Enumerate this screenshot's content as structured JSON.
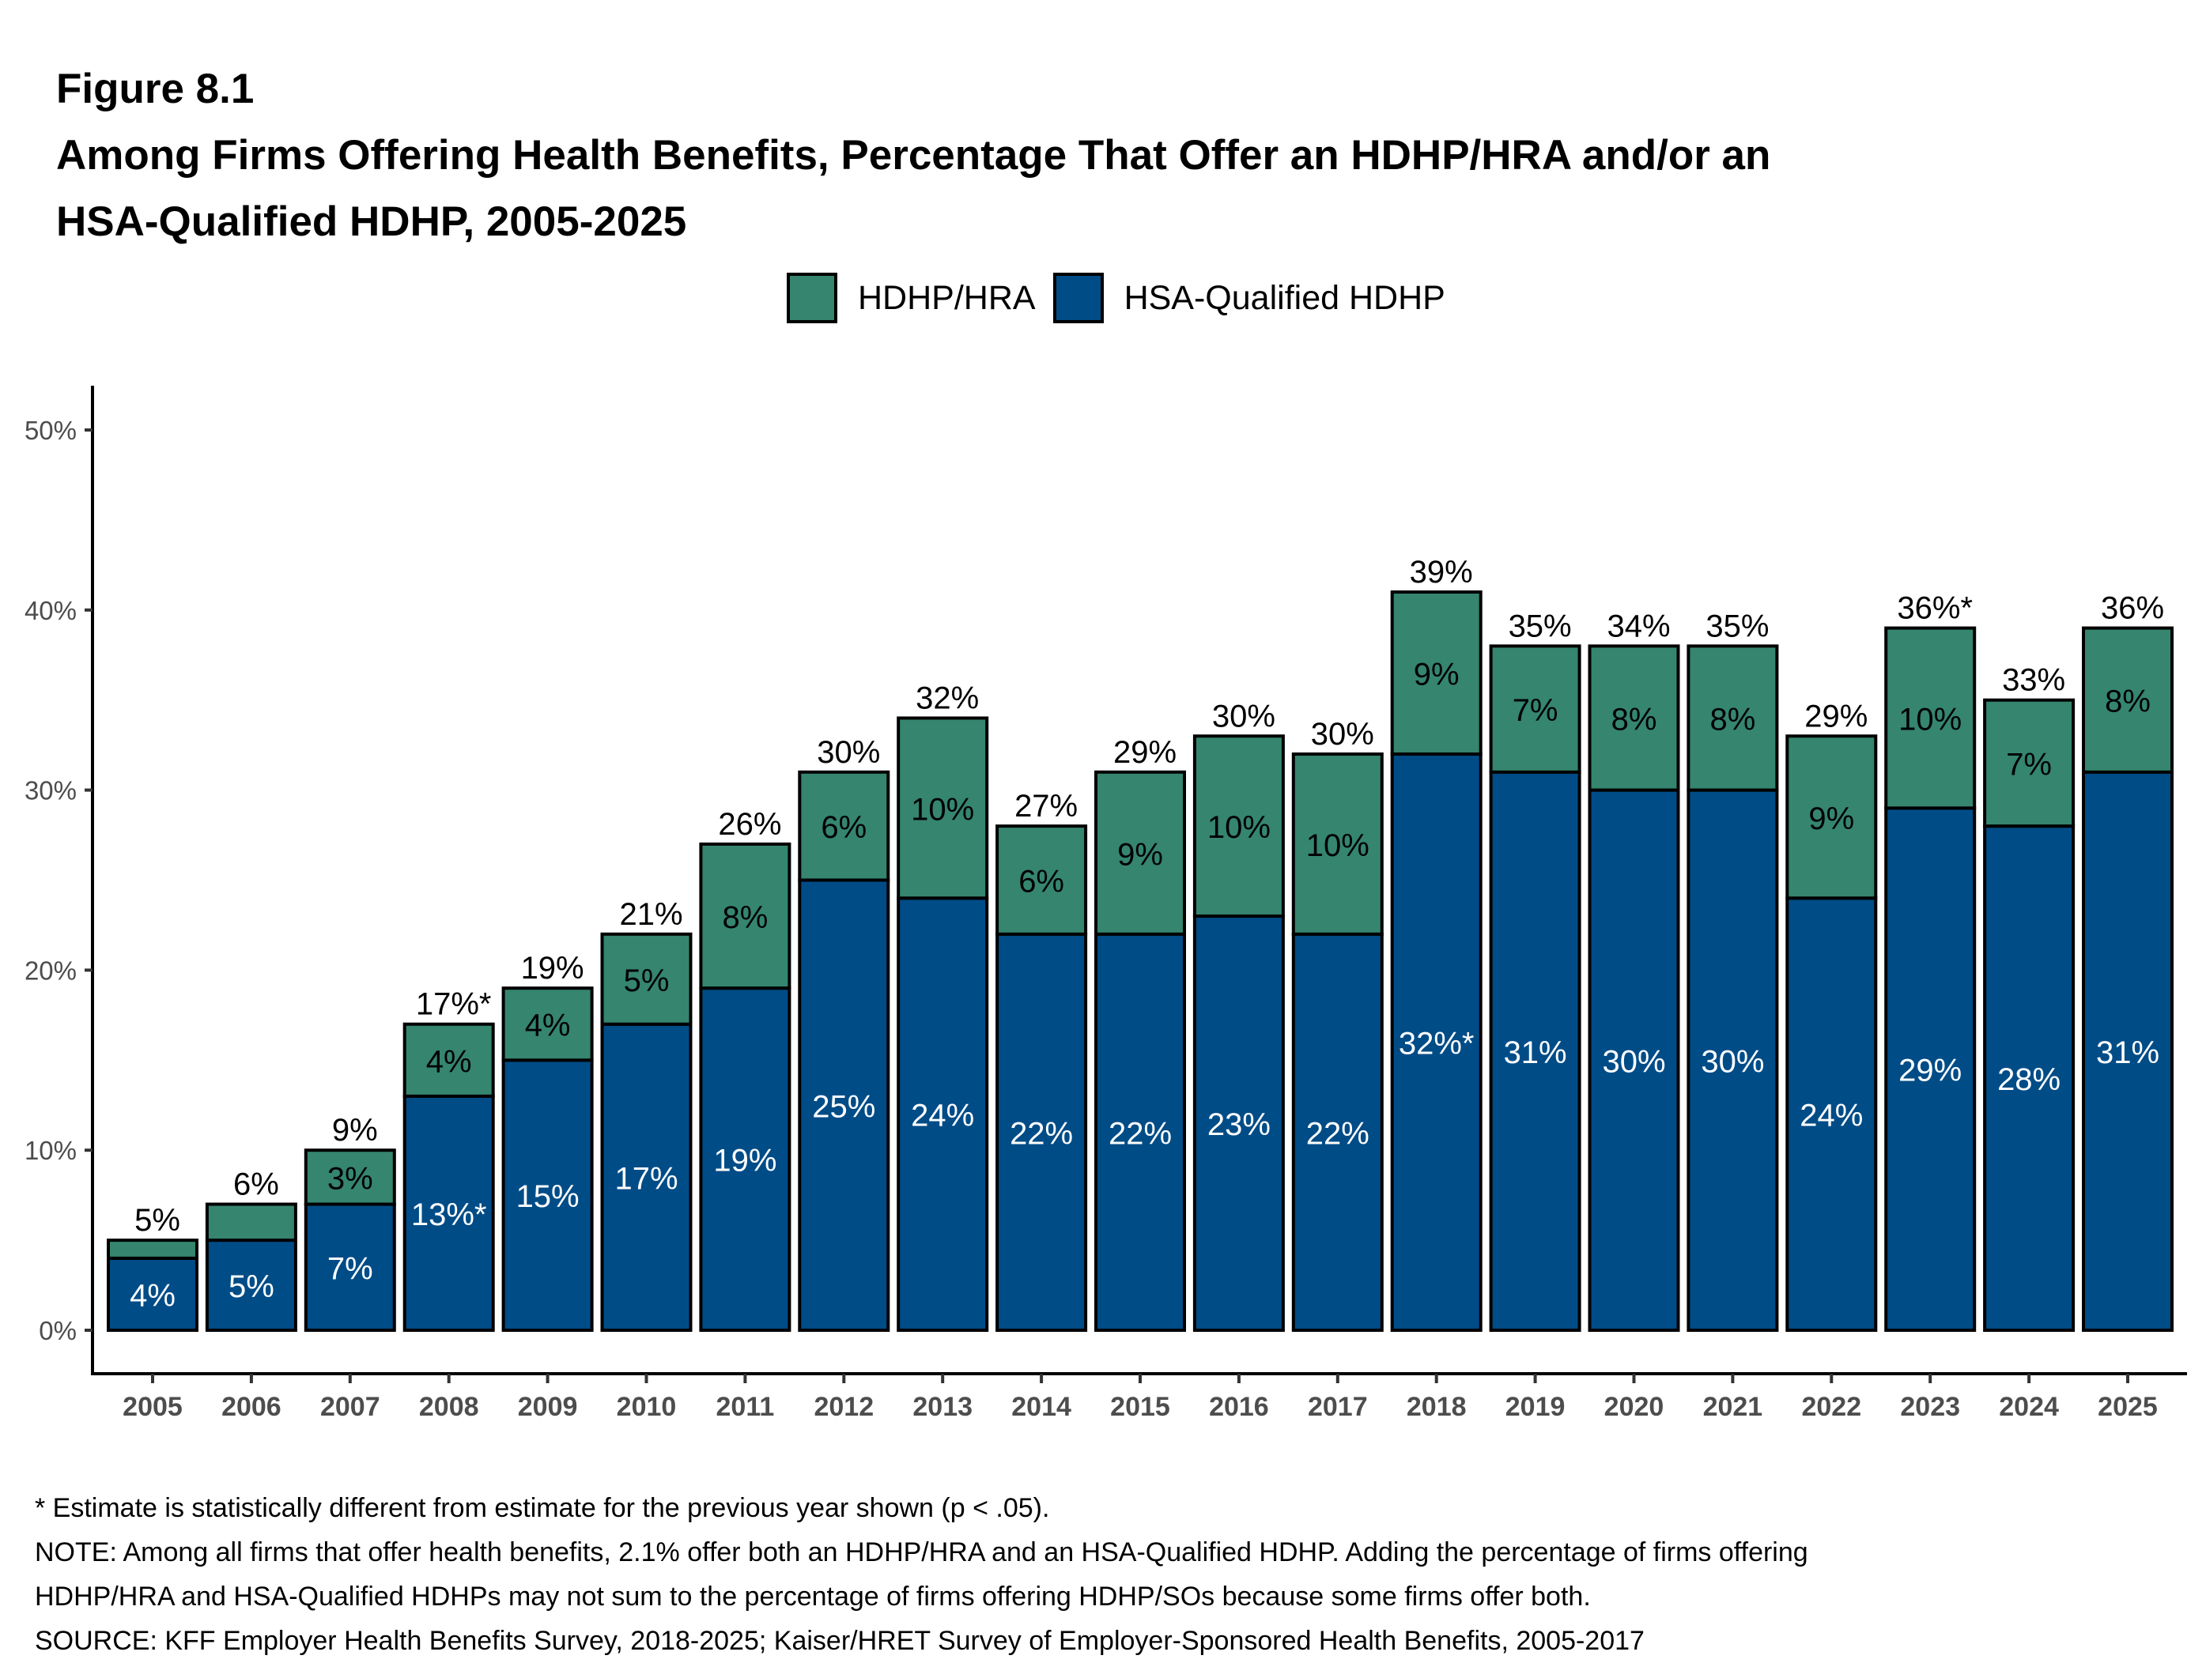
{
  "figure": {
    "label": "Figure 8.1",
    "title_lines": [
      "Among Firms Offering Health Benefits, Percentage That Offer an HDHP/HRA and/or an",
      "HSA-Qualified HDHP, 2005-2025"
    ]
  },
  "colors": {
    "hdhp_hra": "#35856F",
    "hsa_qualified_hdhp": "#004C87",
    "axis_text": "#4D4D4D",
    "bar_outline": "#000000"
  },
  "legend": {
    "items": [
      {
        "label": "HDHP/HRA",
        "color": "#35856F"
      },
      {
        "label": "HSA-Qualified HDHP",
        "color": "#004C87"
      }
    ]
  },
  "chart_data": {
    "type": "bar",
    "stacked": true,
    "title": "Among Firms Offering Health Benefits, Percentage That Offer an HDHP/HRA and/or an HSA-Qualified HDHP, 2005-2025",
    "xlabel": "",
    "ylabel": "",
    "ylim": [
      0,
      50
    ],
    "yticks": [
      0,
      10,
      20,
      30,
      40,
      50
    ],
    "ytick_labels": [
      "0%",
      "10%",
      "20%",
      "30%",
      "40%",
      "50%"
    ],
    "grid": false,
    "legend_position": "top",
    "categories": [
      "2005",
      "2006",
      "2007",
      "2008",
      "2009",
      "2010",
      "2011",
      "2012",
      "2013",
      "2014",
      "2015",
      "2016",
      "2017",
      "2018",
      "2019",
      "2020",
      "2021",
      "2022",
      "2023",
      "2024",
      "2025"
    ],
    "series": [
      {
        "name": "HSA-Qualified HDHP",
        "color": "#004C87",
        "values": [
          4,
          5,
          7,
          13,
          15,
          17,
          19,
          25,
          24,
          22,
          22,
          23,
          22,
          32,
          31,
          30,
          30,
          24,
          29,
          28,
          31
        ],
        "labels": [
          "4%",
          "5%",
          "7%",
          "13%*",
          "15%",
          "17%",
          "19%",
          "25%",
          "24%",
          "22%",
          "22%",
          "23%",
          "22%",
          "32%*",
          "31%",
          "30%",
          "30%",
          "24%",
          "29%",
          "28%",
          "31%"
        ]
      },
      {
        "name": "HDHP/HRA",
        "color": "#35856F",
        "values": [
          1,
          2,
          3,
          4,
          4,
          5,
          8,
          6,
          10,
          6,
          9,
          10,
          10,
          9,
          7,
          8,
          8,
          9,
          10,
          7,
          8
        ],
        "labels": [
          "",
          "",
          "3%",
          "4%",
          "4%",
          "5%",
          "8%",
          "6%",
          "10%",
          "6%",
          "9%",
          "10%",
          "10%",
          "9%",
          "7%",
          "8%",
          "8%",
          "9%",
          "10%",
          "7%",
          "8%"
        ]
      }
    ],
    "total_labels": [
      "5%",
      "6%",
      "9%",
      "17%*",
      "19%",
      "21%",
      "26%",
      "30%",
      "32%",
      "27%",
      "29%",
      "30%",
      "30%",
      "39%",
      "35%",
      "34%",
      "35%",
      "29%",
      "36%*",
      "33%",
      "36%"
    ]
  },
  "notes": [
    "* Estimate is statistically different from estimate for the previous year shown (p < .05).",
    "NOTE: Among all firms that offer health benefits, 2.1% offer both an HDHP/HRA and an HSA-Qualified HDHP. Adding the percentage of firms offering",
    "HDHP/HRA and HSA-Qualified HDHPs may not sum to the percentage of firms offering HDHP/SOs because some firms offer both.",
    "SOURCE: KFF Employer Health Benefits Survey, 2018-2025; Kaiser/HRET Survey of Employer-Sponsored Health Benefits, 2005-2017"
  ]
}
